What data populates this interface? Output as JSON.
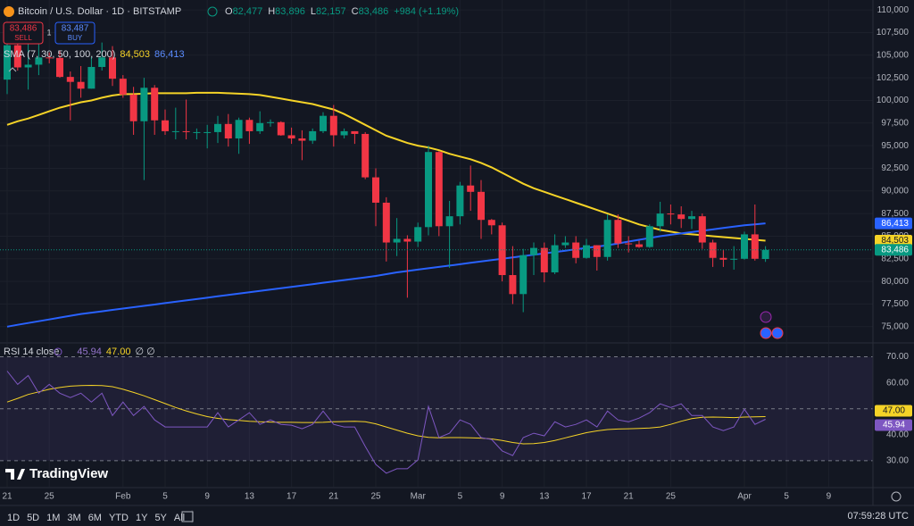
{
  "header": {
    "ohlc": [
      {
        "key": "O",
        "value": "82,477"
      },
      {
        "key": "H",
        "value": "83,896"
      },
      {
        "key": "L",
        "value": "82,157"
      },
      {
        "key": "C",
        "value": "83,486"
      }
    ],
    "change": "+984 (+1.19%)",
    "sell_price": "83,486",
    "sell": "SELL",
    "quantity": "1",
    "buy_price": "83,487",
    "buy": "BUY"
  },
  "chart_data": [
    {
      "type": "candlestick",
      "title": "Bitcoin / U.S. Dollar · 1D · BITSTAMP",
      "indicator_label": "SMA (7, 30, 50, 100, 200)",
      "categories": [
        "21",
        null,
        null,
        null,
        "25",
        null,
        null,
        null,
        null,
        null,
        null,
        "Feb",
        null,
        null,
        null,
        "5",
        null,
        null,
        null,
        "9",
        null,
        null,
        null,
        "13",
        null,
        null,
        null,
        "17",
        null,
        null,
        null,
        "21",
        null,
        null,
        null,
        "25",
        null,
        null,
        null,
        "Mar",
        null,
        null,
        null,
        "5",
        null,
        null,
        null,
        "9",
        null,
        null,
        null,
        "13",
        null,
        null,
        null,
        "17",
        null,
        null,
        null,
        "21",
        null,
        null,
        null,
        "25",
        null,
        null,
        null,
        null,
        null,
        null,
        "Apr",
        null,
        null,
        null,
        "5",
        null,
        null,
        null,
        "9"
      ],
      "open": [
        102300,
        106100,
        103650,
        103950,
        104750,
        104700,
        102600,
        102050,
        101300,
        103700,
        104750,
        102400,
        100650,
        97700,
        101400,
        97800,
        96600,
        96600,
        96500,
        96500,
        96500,
        97400,
        95800,
        97850,
        96600,
        97500,
        97600,
        96150,
        95800,
        95550,
        96600,
        98300,
        96150,
        96600,
        96300,
        91500,
        88700,
        84300,
        84700,
        84400,
        86000,
        94300,
        86100,
        87200,
        90600,
        89900,
        86800,
        86200,
        80700,
        78600,
        82900,
        83700,
        81000,
        84000,
        84300,
        82600,
        84000,
        82700,
        86800,
        84200,
        84100,
        83800,
        86100,
        87500,
        87400,
        86900,
        87200,
        84300,
        82600,
        82400,
        82500,
        85200,
        82477,
        null,
        null,
        null,
        null,
        null,
        null
      ],
      "high": [
        107000,
        106300,
        106800,
        107100,
        105300,
        105500,
        103200,
        103800,
        104800,
        106400,
        106000,
        102800,
        101500,
        102500,
        101700,
        99000,
        99200,
        100100,
        96900,
        97300,
        98300,
        98500,
        98100,
        98100,
        98800,
        97900,
        97700,
        97000,
        96700,
        96900,
        98700,
        99500,
        96900,
        96600,
        96500,
        92500,
        89300,
        87000,
        85100,
        86500,
        95000,
        94400,
        88900,
        91000,
        92800,
        91200,
        86900,
        86500,
        83900,
        83600,
        84300,
        84300,
        85200,
        85000,
        85000,
        84700,
        84000,
        87400,
        87400,
        85000,
        84500,
        86300,
        88800,
        88500,
        88300,
        87800,
        87500,
        84600,
        83500,
        83900,
        85500,
        88500,
        83896,
        null,
        null,
        null,
        null,
        null,
        null
      ],
      "low": [
        100700,
        103300,
        101200,
        102800,
        104100,
        102500,
        97800,
        100300,
        101300,
        103300,
        101600,
        100300,
        96200,
        91200,
        96200,
        96200,
        95700,
        95700,
        95700,
        94700,
        95300,
        94900,
        94100,
        95200,
        96300,
        97100,
        96100,
        95200,
        93400,
        95200,
        96400,
        94900,
        95800,
        95200,
        91300,
        86100,
        82200,
        82800,
        78200,
        83800,
        85100,
        85000,
        81500,
        86300,
        87800,
        84700,
        85200,
        80000,
        77500,
        76600,
        80700,
        79900,
        80800,
        83700,
        82000,
        82500,
        81200,
        82300,
        83700,
        83200,
        83700,
        83700,
        85500,
        86300,
        85900,
        85800,
        83600,
        81600,
        81600,
        81300,
        82400,
        82300,
        82157,
        null,
        null,
        null,
        null,
        null,
        null
      ],
      "close": [
        106100,
        103650,
        103950,
        104750,
        104700,
        102600,
        102050,
        101300,
        103700,
        104750,
        102400,
        100650,
        97700,
        101400,
        97800,
        96600,
        96600,
        96500,
        96500,
        96500,
        97400,
        95800,
        97850,
        96600,
        97500,
        97600,
        96150,
        95800,
        95550,
        96600,
        98300,
        96150,
        96600,
        96300,
        91500,
        88700,
        84300,
        84700,
        84400,
        86000,
        94300,
        86100,
        87200,
        90600,
        89900,
        86800,
        86200,
        80700,
        78600,
        82900,
        83700,
        81000,
        84000,
        84300,
        82600,
        84000,
        82700,
        86800,
        84200,
        84100,
        83800,
        86100,
        87500,
        87400,
        86900,
        87200,
        84300,
        82600,
        82400,
        82500,
        85200,
        82500,
        83486,
        null,
        null,
        null,
        null,
        null,
        null
      ],
      "close_label": "83,486",
      "up_color": "#089981",
      "down_color": "#f23645",
      "series": [
        {
          "color": "#f5d327",
          "last_label": "84,503",
          "values": [
            97300,
            97700,
            98000,
            98400,
            98800,
            99200,
            99500,
            99800,
            100000,
            100300,
            100550,
            100700,
            100700,
            100750,
            100800,
            100800,
            100800,
            100800,
            100850,
            100850,
            100850,
            100800,
            100750,
            100700,
            100600,
            100400,
            100200,
            100000,
            99800,
            99600,
            99300,
            99000,
            98500,
            97900,
            97300,
            96700,
            96100,
            95700,
            95300,
            95000,
            94800,
            94500,
            94100,
            93800,
            93500,
            93100,
            92600,
            92000,
            91400,
            90800,
            90300,
            89900,
            89500,
            89100,
            88700,
            88300,
            87900,
            87500,
            87100,
            86700,
            86300,
            86000,
            85700,
            85500,
            85300,
            85200,
            85100,
            85000,
            84900,
            84800,
            84700,
            84600,
            84503,
            null,
            null,
            null,
            null,
            null,
            null
          ]
        },
        {
          "color": "#2962ff",
          "last_label": "86,413",
          "values": [
            75000,
            75200,
            75400,
            75600,
            75800,
            76000,
            76200,
            76400,
            76550,
            76700,
            76850,
            77000,
            77150,
            77300,
            77450,
            77600,
            77750,
            77900,
            78050,
            78200,
            78350,
            78500,
            78650,
            78800,
            78950,
            79100,
            79250,
            79400,
            79550,
            79700,
            79850,
            80000,
            80150,
            80300,
            80450,
            80600,
            80800,
            81000,
            81150,
            81300,
            81450,
            81600,
            81750,
            81900,
            82050,
            82200,
            82350,
            82500,
            82650,
            82800,
            82950,
            83100,
            83250,
            83400,
            83550,
            83700,
            83850,
            84000,
            84200,
            84400,
            84600,
            84800,
            85000,
            85150,
            85300,
            85450,
            85600,
            85750,
            85900,
            86050,
            86200,
            86300,
            86413,
            null,
            null,
            null,
            null,
            null,
            null
          ]
        }
      ],
      "ylim": [
        73300,
        111100
      ],
      "yticks": [
        {
          "value": 75000,
          "label": "75,000"
        },
        {
          "value": 77500,
          "label": "77,500"
        },
        {
          "value": 80000,
          "label": "80,000"
        },
        {
          "value": 82500,
          "label": "82,500"
        },
        {
          "value": 85000,
          "label": "85,000"
        },
        {
          "value": 87500,
          "label": "87,500"
        },
        {
          "value": 90000,
          "label": "90,000"
        },
        {
          "value": 92500,
          "label": "92,500"
        },
        {
          "value": 95000,
          "label": "95,000"
        },
        {
          "value": 97500,
          "label": "97,500"
        },
        {
          "value": 100000,
          "label": "100,000"
        },
        {
          "value": 102500,
          "label": "102,500"
        },
        {
          "value": 105000,
          "label": "105,000"
        },
        {
          "value": 107500,
          "label": "107,500"
        },
        {
          "value": 110000,
          "label": "110,000"
        }
      ],
      "grid": true
    },
    {
      "type": "line",
      "title": "RSI 14 close",
      "levels_text": "∅ ∅",
      "series": [
        {
          "color": "#7e57c2",
          "values": [
            64.5,
            59.4,
            62.8,
            56,
            59.4,
            56,
            54.3,
            56,
            52.6,
            56,
            47.4,
            52.6,
            47.4,
            50.9,
            45.7,
            43,
            43,
            43,
            43,
            43,
            48.5,
            43,
            45.7,
            48.5,
            44,
            45.7,
            44,
            43.7,
            42.3,
            44,
            49.1,
            44,
            43,
            43,
            35.5,
            28.6,
            25.2,
            26.9,
            26.9,
            30.3,
            50.9,
            38.9,
            40.6,
            45.7,
            44,
            38.9,
            38.2,
            33.8,
            32,
            38.9,
            40.6,
            39.6,
            45,
            43,
            44,
            45.7,
            43,
            49.1,
            45.7,
            45,
            46.4,
            48.5,
            51.9,
            50.5,
            51.9,
            47.4,
            47.4,
            43,
            41.6,
            43,
            49.8,
            44,
            45.94,
            null,
            null,
            null,
            null,
            null,
            null
          ]
        },
        {
          "color": "#f5d327",
          "last_label": "47.00",
          "values": [
            52.6,
            54,
            55.5,
            56.5,
            57.5,
            58.2,
            58.7,
            58.9,
            59,
            58.9,
            58.5,
            57.5,
            56.3,
            55,
            53.5,
            52,
            50.5,
            49.2,
            48,
            47,
            46.3,
            45.8,
            45.5,
            45.2,
            45,
            44.9,
            44.8,
            44.8,
            44.7,
            44.7,
            44.8,
            45,
            45.1,
            45.2,
            45,
            44.2,
            43,
            41.8,
            40.6,
            39.6,
            39,
            38.8,
            38.9,
            38.9,
            38.8,
            38.7,
            38.4,
            37.8,
            37,
            36.5,
            36.6,
            37,
            37.8,
            38.8,
            39.8,
            40.8,
            41.5,
            42,
            42.2,
            42.3,
            42.4,
            42.6,
            43,
            44,
            45.2,
            46.2,
            46.7,
            46.8,
            46.7,
            46.6,
            46.8,
            46.9,
            47.0,
            null,
            null,
            null,
            null,
            null,
            null
          ]
        }
      ],
      "ylim": [
        20,
        75
      ],
      "yticks": [
        {
          "value": 30,
          "label": "30.00"
        },
        {
          "value": 40,
          "label": "40.00"
        },
        {
          "value": 60,
          "label": "60.00"
        },
        {
          "value": 70,
          "label": "70.00"
        }
      ],
      "levels": [
        70,
        50,
        30
      ],
      "band_color": "#7e57c2"
    }
  ],
  "logo": "TradingView",
  "toolbar": {
    "ranges": [
      "1D",
      "5D",
      "1M",
      "3M",
      "6M",
      "YTD",
      "1Y",
      "5Y",
      "All"
    ],
    "clock": "07:59:28 UTC"
  }
}
